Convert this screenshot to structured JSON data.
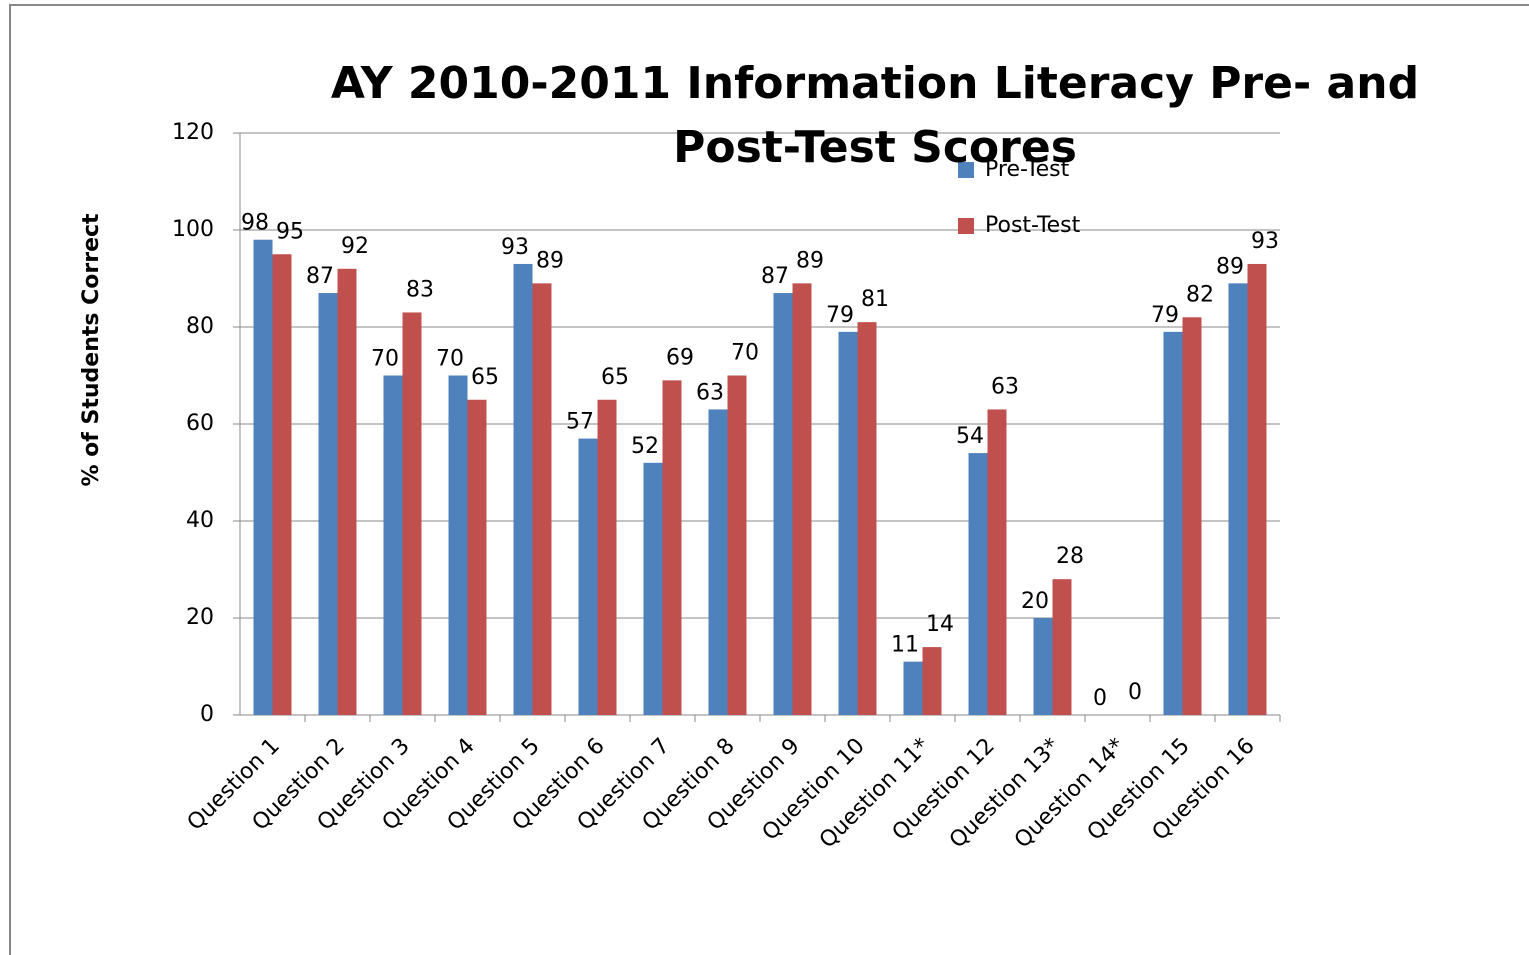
{
  "chart_data": {
    "type": "bar",
    "title": "AY 2010-2011 Information Literacy Pre- and Post-Test Scores",
    "y_label": "% of Students Correct",
    "categories": [
      "Question 1",
      "Question 2",
      "Question 3",
      "Question 4",
      "Question 5",
      "Question 6",
      "Question 7",
      "Question 8",
      "Question 9",
      "Question 10",
      "Question 11*",
      "Question 12",
      "Question 13*",
      "Question 14*",
      "Question 15",
      "Question 16"
    ],
    "series": [
      {
        "name": "Pre-Test",
        "color": "#4f81bd",
        "values": [
          98,
          87,
          70,
          70,
          93,
          57,
          52,
          63,
          87,
          79,
          11,
          54,
          20,
          0,
          79,
          89
        ]
      },
      {
        "name": "Post-Test",
        "color": "#c0504d",
        "values": [
          95,
          92,
          83,
          65,
          89,
          65,
          69,
          70,
          89,
          81,
          14,
          63,
          28,
          0,
          82,
          93
        ]
      }
    ],
    "ylim": [
      0,
      120
    ],
    "yticks": [
      0,
      20,
      40,
      60,
      80,
      100,
      120
    ],
    "grid": true,
    "legend": "top-right"
  }
}
